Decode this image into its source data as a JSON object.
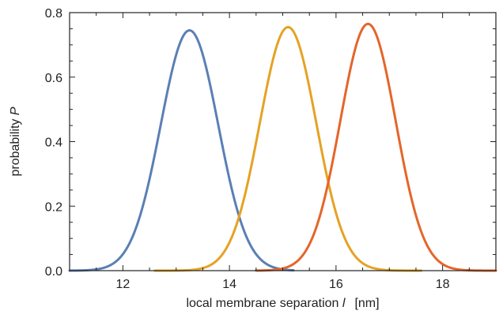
{
  "chart_data": {
    "type": "line",
    "xlabel": {
      "text": "local membrane separation ",
      "var": "l",
      "unit": "[nm]"
    },
    "ylabel": {
      "text": "probability ",
      "var": "P"
    },
    "xlim": [
      11,
      19
    ],
    "ylim": [
      0,
      0.8
    ],
    "xticks": {
      "major": [
        12,
        14,
        16,
        18
      ],
      "minor_step": 0.5,
      "labels": [
        "12",
        "14",
        "16",
        "18"
      ]
    },
    "yticks": {
      "major": [
        0,
        0.2,
        0.4,
        0.6,
        0.8
      ],
      "minor_step": 0.05,
      "labels": [
        "0.0",
        "0.2",
        "0.4",
        "0.6",
        "0.8"
      ]
    },
    "grid": false,
    "legend": "none",
    "series": [
      {
        "color": "#5b7fb5",
        "shape": "gaussian",
        "mean": 13.25,
        "sd": 0.54,
        "peak": 0.745,
        "x_range": [
          11,
          15.2
        ]
      },
      {
        "color": "#e5a224",
        "shape": "gaussian",
        "mean": 15.1,
        "sd": 0.53,
        "peak": 0.755,
        "x_range": [
          12.6,
          17.6
        ]
      },
      {
        "color": "#e5652a",
        "shape": "gaussian",
        "mean": 16.6,
        "sd": 0.52,
        "peak": 0.765,
        "x_range": [
          14.5,
          19
        ]
      }
    ]
  }
}
